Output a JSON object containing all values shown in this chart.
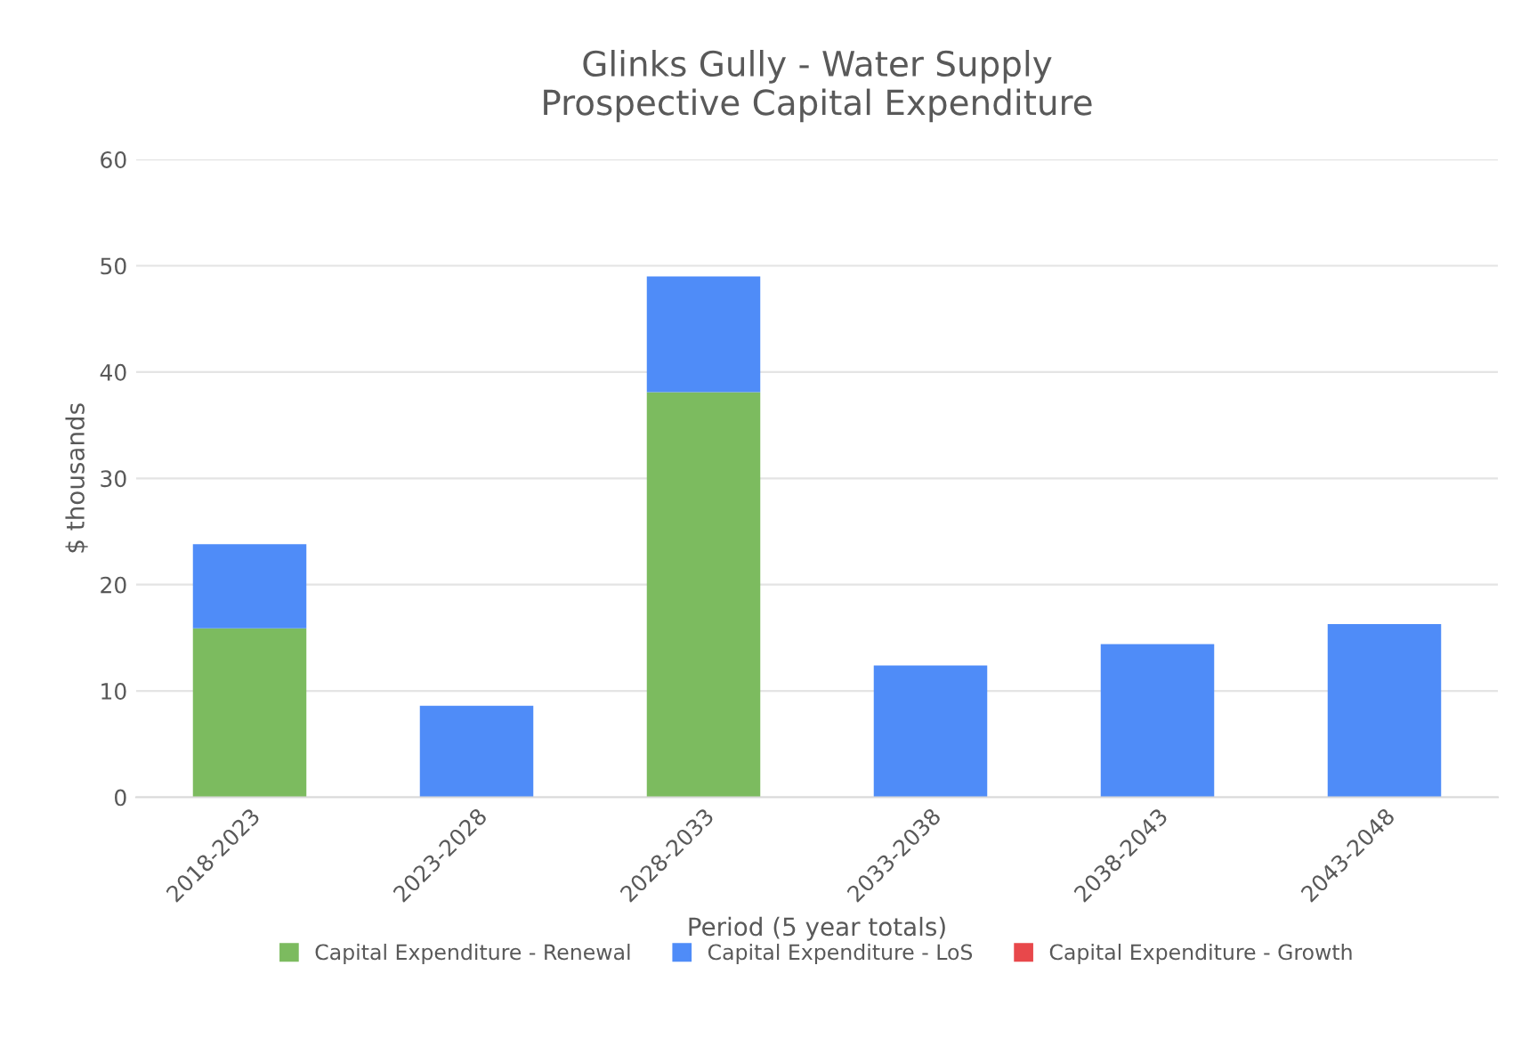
{
  "chart_data": {
    "type": "bar",
    "title": "Glinks Gully - Water Supply\nProspective Capital Expenditure",
    "xlabel": "Period (5 year totals)",
    "ylabel": "$ thousands",
    "categories": [
      "2018-2023",
      "2023-2028",
      "2028-2033",
      "2033-2038",
      "2038-2043",
      "2043-2048"
    ],
    "stacked": true,
    "series": [
      {
        "name": "Capital Expenditure - Renewal",
        "color": "#7cbb5f",
        "values": [
          15.9,
          0,
          38.1,
          0,
          0,
          0
        ]
      },
      {
        "name": "Capital Expenditure - LoS",
        "color": "#4f8cf8",
        "values": [
          7.9,
          8.6,
          10.9,
          12.4,
          14.4,
          16.3
        ]
      },
      {
        "name": "Capital Expenditure - Growth",
        "color": "#e8484b",
        "values": [
          0,
          0,
          0,
          0,
          0,
          0
        ]
      }
    ],
    "ylim": [
      0,
      60
    ],
    "yticks": [
      0,
      10,
      20,
      30,
      40,
      50,
      60
    ],
    "grid": "y",
    "legend": "bottom"
  }
}
